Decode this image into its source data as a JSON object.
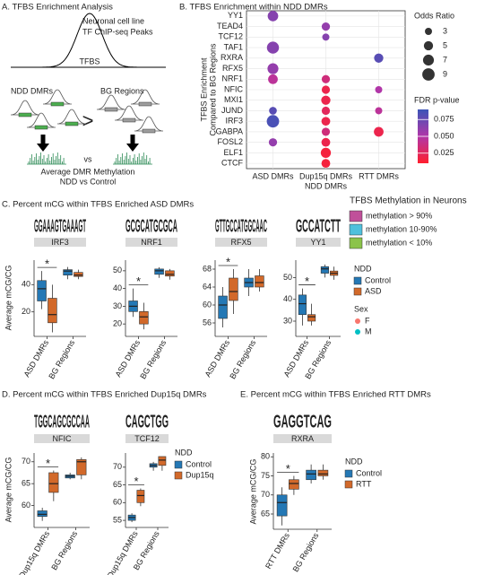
{
  "panel_a": {
    "title": "A. TFBS Enrichment Analysis",
    "peak_label": [
      "Neuronal cell line",
      "TF ChIP-seq Peaks"
    ],
    "tfbs": "TFBS",
    "ndd": "NDD DMRs",
    "bg": "BG Regions",
    "comparison": ">",
    "vs": "vs",
    "result": [
      "Average DMR Methylation",
      "NDD vs Control"
    ]
  },
  "chart_data": [
    {
      "type": "dot",
      "title": "B. TFBS Enrichment within NDD DMRs",
      "xlabel": "NDD DMRs",
      "ylabel": [
        "TFBS Enrichment",
        "Compared to BG Regions"
      ],
      "categories": [
        "ASD DMRs",
        "Dup15q DMRs",
        "RTT DMRs"
      ],
      "rows": [
        "YY1",
        "TEAD4",
        "TCF12",
        "TAF1",
        "RXRA",
        "RFX5",
        "NRF1",
        "NFIC",
        "MXI1",
        "JUND",
        "IRF3",
        "GABPA",
        "FOSL2",
        "ELF1",
        "CTCF"
      ],
      "points": [
        {
          "x": "ASD DMRs",
          "y": "YY1",
          "odds_ratio": 6.5,
          "fdr": 0.065
        },
        {
          "x": "ASD DMRs",
          "y": "TAF1",
          "odds_ratio": 8.5,
          "fdr": 0.065
        },
        {
          "x": "ASD DMRs",
          "y": "RFX5",
          "odds_ratio": 7,
          "fdr": 0.06
        },
        {
          "x": "ASD DMRs",
          "y": "NRF1",
          "odds_ratio": 5.5,
          "fdr": 0.045
        },
        {
          "x": "ASD DMRs",
          "y": "JUND",
          "odds_ratio": 3.5,
          "fdr": 0.08
        },
        {
          "x": "ASD DMRs",
          "y": "IRF3",
          "odds_ratio": 9,
          "fdr": 0.085
        },
        {
          "x": "ASD DMRs",
          "y": "FOSL2",
          "odds_ratio": 4,
          "fdr": 0.06
        },
        {
          "x": "Dup15q DMRs",
          "y": "TEAD4",
          "odds_ratio": 4,
          "fdr": 0.06
        },
        {
          "x": "Dup15q DMRs",
          "y": "TCF12",
          "odds_ratio": 3,
          "fdr": 0.065
        },
        {
          "x": "Dup15q DMRs",
          "y": "NRF1",
          "odds_ratio": 4,
          "fdr": 0.035
        },
        {
          "x": "Dup15q DMRs",
          "y": "NFIC",
          "odds_ratio": 4,
          "fdr": 0.02
        },
        {
          "x": "Dup15q DMRs",
          "y": "MXI1",
          "odds_ratio": 5,
          "fdr": 0.02
        },
        {
          "x": "Dup15q DMRs",
          "y": "JUND",
          "odds_ratio": 4,
          "fdr": 0.025
        },
        {
          "x": "Dup15q DMRs",
          "y": "IRF3",
          "odds_ratio": 4.5,
          "fdr": 0.02
        },
        {
          "x": "Dup15q DMRs",
          "y": "GABPA",
          "odds_ratio": 4,
          "fdr": 0.035
        },
        {
          "x": "Dup15q DMRs",
          "y": "FOSL2",
          "odds_ratio": 4.5,
          "fdr": 0.02
        },
        {
          "x": "Dup15q DMRs",
          "y": "ELF1",
          "odds_ratio": 6,
          "fdr": 0.015
        },
        {
          "x": "Dup15q DMRs",
          "y": "CTCF",
          "odds_ratio": 4.5,
          "fdr": 0.015
        },
        {
          "x": "RTT DMRs",
          "y": "RXRA",
          "odds_ratio": 5,
          "fdr": 0.08
        },
        {
          "x": "RTT DMRs",
          "y": "NFIC",
          "odds_ratio": 3,
          "fdr": 0.05
        },
        {
          "x": "RTT DMRs",
          "y": "JUND",
          "odds_ratio": 3,
          "fdr": 0.045
        },
        {
          "x": "RTT DMRs",
          "y": "GABPA",
          "odds_ratio": 5.5,
          "fdr": 0.02
        }
      ],
      "size_legend": {
        "title": "Odds Ratio",
        "values": [
          3,
          5,
          7,
          9
        ]
      },
      "color_legend": {
        "title": "FDR p-value",
        "lim": [
          0.01,
          0.09
        ],
        "ticks": [
          0.075,
          {
            "value": 0.05,
            "label": "0.050"
          },
          0.025
        ],
        "colors": [
          "#ff1f2e",
          "#b136a8",
          "#3b55b8"
        ]
      },
      "grid": true
    },
    {
      "type": "box",
      "title": "C. Percent mCG within TFBS Enriched ASD DMRs",
      "ylabel": "Average mCG/CG",
      "legend_title": "NDD",
      "series": [
        {
          "name": "Control",
          "color": "#2478b5"
        },
        {
          "name": "ASD",
          "color": "#d2692a"
        }
      ],
      "categories": [
        "ASD DMRs",
        "BG Regions"
      ],
      "significance": "*",
      "point_legend": {
        "title": "Sex",
        "items": [
          {
            "name": "F",
            "color": "#f8766d"
          },
          {
            "name": "M",
            "color": "#00bfc4"
          }
        ]
      },
      "methylation_legend": {
        "title": "TFBS Methylation in Neurons",
        "items": [
          {
            "label": "methylation > 90%",
            "color": "#c0509a"
          },
          {
            "label": "methylation 10-90%",
            "color": "#4fc0dc"
          },
          {
            "label": "methylation < 10%",
            "color": "#8bc34a"
          }
        ]
      },
      "facets": [
        {
          "name": "IRF3",
          "motif": "GGAAAGTGAAAGT",
          "ylim": [
            2,
            58
          ],
          "yticks": [
            20,
            40
          ],
          "boxes": [
            [
              {
                "min": 22,
                "q1": 28,
                "median": 37,
                "q3": 43,
                "max": 50
              },
              {
                "min": 5,
                "q1": 12,
                "median": 18,
                "q3": 30,
                "max": 40
              }
            ],
            [
              {
                "min": 44,
                "q1": 47,
                "median": 50,
                "q3": 51,
                "max": 53
              },
              {
                "min": 44,
                "q1": 46,
                "median": 47,
                "q3": 49,
                "max": 51
              }
            ]
          ]
        },
        {
          "name": "NRF1",
          "motif": "GCGCATGCGCA",
          "ylim": [
            13,
            56
          ],
          "yticks": [
            20,
            30,
            40,
            50
          ],
          "boxes": [
            [
              {
                "min": 24,
                "q1": 27,
                "median": 30,
                "q3": 33,
                "max": 40
              },
              {
                "min": 17,
                "q1": 20,
                "median": 24,
                "q3": 27,
                "max": 32
              }
            ],
            [
              {
                "min": 46,
                "q1": 48,
                "median": 50,
                "q3": 51,
                "max": 52
              },
              {
                "min": 45,
                "q1": 47,
                "median": 48,
                "q3": 50,
                "max": 51
              }
            ]
          ]
        },
        {
          "name": "RFX5",
          "motif": "GTTGCCATGGCAAC",
          "ylim": [
            53,
            70
          ],
          "yticks": [
            56,
            60,
            64,
            68
          ],
          "boxes": [
            [
              {
                "min": 55,
                "q1": 57,
                "median": 60,
                "q3": 62,
                "max": 64
              },
              {
                "min": 58,
                "q1": 61,
                "median": 63,
                "q3": 66,
                "max": 68
              }
            ],
            [
              {
                "min": 62,
                "q1": 64,
                "median": 65,
                "q3": 66,
                "max": 68
              },
              {
                "min": 63,
                "q1": 64,
                "median": 65,
                "q3": 66.5,
                "max": 68
              }
            ]
          ]
        },
        {
          "name": "YY1",
          "motif": "GCCATCTT",
          "ylim": [
            23,
            58
          ],
          "yticks": [
            30,
            40,
            50
          ],
          "boxes": [
            [
              {
                "min": 28,
                "q1": 33,
                "median": 38,
                "q3": 42,
                "max": 45
              },
              {
                "min": 28,
                "q1": 30,
                "median": 32,
                "q3": 33,
                "max": 38
              }
            ],
            [
              {
                "min": 50,
                "q1": 52,
                "median": 54,
                "q3": 55,
                "max": 56
              },
              {
                "min": 49,
                "q1": 51,
                "median": 52,
                "q3": 53,
                "max": 55
              }
            ]
          ]
        }
      ]
    },
    {
      "type": "box",
      "title": "D. Percent mCG within TFBS Enriched Dup15q DMRs",
      "ylabel": "Average mCG/CG",
      "legend_title": "NDD",
      "series": [
        {
          "name": "Control",
          "color": "#2478b5"
        },
        {
          "name": "Dup15q",
          "color": "#d2692a"
        }
      ],
      "categories": [
        "Dup15q DMRs",
        "BG Regions"
      ],
      "significance": "*",
      "facets": [
        {
          "name": "NFIC",
          "motif": "TGGCAGCGCCAA",
          "ylim": [
            55,
            72
          ],
          "yticks": [
            60,
            65,
            70
          ],
          "boxes": [
            [
              {
                "min": 56.5,
                "q1": 57.5,
                "median": 58,
                "q3": 58.8,
                "max": 59.5
              },
              {
                "min": 61,
                "q1": 63,
                "median": 65,
                "q3": 67.5,
                "max": 68
              }
            ],
            [
              {
                "min": 66,
                "q1": 66.3,
                "median": 66.7,
                "q3": 67,
                "max": 67.5
              },
              {
                "min": 66,
                "q1": 67,
                "median": 70,
                "q3": 70.5,
                "max": 71
              }
            ]
          ]
        },
        {
          "name": "TCF12",
          "motif": "CAGCTGG",
          "ylim": [
            53,
            74
          ],
          "yticks": [
            55,
            60,
            65,
            70
          ],
          "boxes": [
            [
              {
                "min": 54.5,
                "q1": 55,
                "median": 55.8,
                "q3": 56.5,
                "max": 57
              },
              {
                "min": 59,
                "q1": 60,
                "median": 62,
                "q3": 63.5,
                "max": 64
              }
            ],
            [
              {
                "min": 69,
                "q1": 70,
                "median": 70.5,
                "q3": 71,
                "max": 71.5
              },
              {
                "min": 69,
                "q1": 70.5,
                "median": 72,
                "q3": 73,
                "max": 73
              }
            ]
          ]
        }
      ]
    },
    {
      "type": "box",
      "title": "E. Percent mCG within TFBS Enriched RTT DMRs",
      "ylabel": "Average mCG/CG",
      "legend_title": "NDD",
      "series": [
        {
          "name": "Control",
          "color": "#2478b5"
        },
        {
          "name": "RTT",
          "color": "#d2692a"
        }
      ],
      "categories": [
        "RTT DMRs",
        "BG Regions"
      ],
      "significance": "*",
      "facets": [
        {
          "name": "RXRA",
          "motif": "GAGGTCAG",
          "ylim": [
            61,
            81
          ],
          "yticks": [
            65,
            70,
            75,
            80
          ],
          "boxes": [
            [
              {
                "min": 62,
                "q1": 64.5,
                "median": 68,
                "q3": 70,
                "max": 72
              },
              {
                "min": 70,
                "q1": 71.5,
                "median": 73,
                "q3": 74,
                "max": 75
              }
            ],
            [
              {
                "min": 73,
                "q1": 74,
                "median": 75.5,
                "q3": 76.5,
                "max": 78
              },
              {
                "min": 74,
                "q1": 75,
                "median": 75.5,
                "q3": 76.5,
                "max": 78
              }
            ]
          ]
        }
      ]
    }
  ]
}
